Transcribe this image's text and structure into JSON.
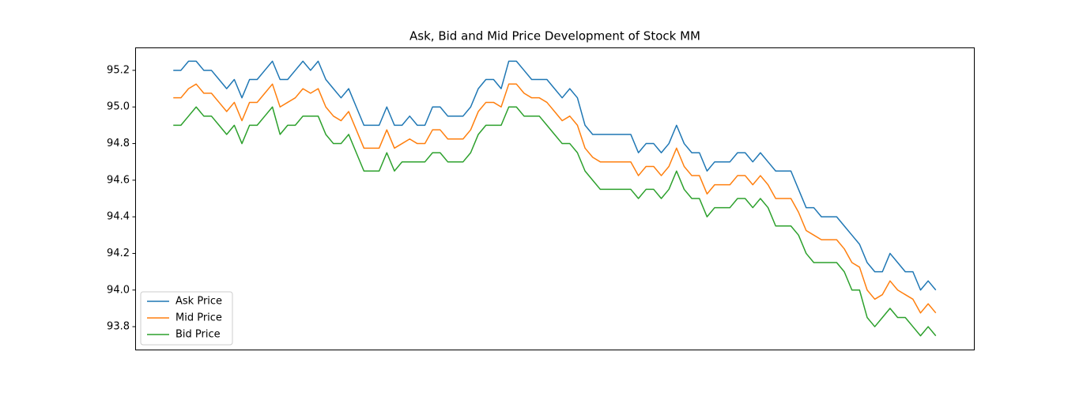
{
  "chart_data": {
    "type": "line",
    "title": "Ask, Bid and Mid Price Development of Stock MM",
    "categories": [
      null,
      null,
      null,
      null,
      null,
      null,
      null,
      null,
      null,
      null,
      null,
      null,
      null,
      null,
      null,
      null,
      null,
      null,
      null,
      null,
      null,
      null,
      null,
      null,
      null,
      null,
      null,
      null,
      null,
      null,
      null,
      null,
      null,
      null,
      null,
      null,
      null,
      null,
      null,
      null,
      null,
      null,
      null,
      null,
      null,
      null,
      null,
      null,
      null,
      null,
      null,
      null,
      null,
      null,
      null,
      null,
      null,
      null,
      null,
      null,
      null,
      null,
      null,
      null,
      null,
      null,
      null,
      null,
      null,
      null,
      null,
      null,
      null,
      null,
      null,
      null,
      null,
      null,
      null,
      null,
      null,
      null,
      null,
      null,
      null,
      null,
      null,
      null,
      null,
      null,
      null,
      null,
      null,
      null,
      null,
      null,
      null,
      null,
      null,
      null,
      null
    ],
    "series": [
      {
        "name": "Ask Price",
        "color": "#1f77b4",
        "values": [
          95.2,
          95.2,
          95.25,
          95.25,
          95.2,
          95.2,
          95.15,
          95.1,
          95.15,
          95.05,
          95.15,
          95.15,
          95.2,
          95.25,
          95.15,
          95.15,
          95.2,
          95.25,
          95.2,
          95.25,
          95.15,
          95.1,
          95.05,
          95.1,
          95.0,
          94.9,
          94.9,
          94.9,
          95.0,
          94.9,
          94.9,
          94.95,
          94.9,
          94.9,
          95.0,
          95.0,
          94.95,
          94.95,
          94.95,
          95.0,
          95.1,
          95.15,
          95.15,
          95.1,
          95.25,
          95.25,
          95.2,
          95.15,
          95.15,
          95.15,
          95.1,
          95.05,
          95.1,
          95.05,
          94.9,
          94.85,
          94.85,
          94.85,
          94.85,
          94.85,
          94.85,
          94.75,
          94.8,
          94.8,
          94.75,
          94.8,
          94.9,
          94.8,
          94.75,
          94.75,
          94.65,
          94.7,
          94.7,
          94.7,
          94.75,
          94.75,
          94.7,
          94.75,
          94.7,
          94.65,
          94.65,
          94.65,
          94.55,
          94.45,
          94.45,
          94.4,
          94.4,
          94.4,
          94.35,
          94.3,
          94.25,
          94.15,
          94.1,
          94.1,
          94.2,
          94.15,
          94.1,
          94.1,
          94.0,
          94.05,
          94.0
        ]
      },
      {
        "name": "Mid Price",
        "color": "#ff7f0e",
        "values": [
          95.05,
          95.05,
          95.1,
          95.125,
          95.075,
          95.075,
          95.025,
          94.975,
          95.025,
          94.925,
          95.025,
          95.025,
          95.075,
          95.125,
          95.0,
          95.025,
          95.05,
          95.1,
          95.075,
          95.1,
          95.0,
          94.95,
          94.925,
          94.975,
          94.875,
          94.775,
          94.775,
          94.775,
          94.875,
          94.775,
          94.8,
          94.825,
          94.8,
          94.8,
          94.875,
          94.875,
          94.825,
          94.825,
          94.825,
          94.875,
          94.975,
          95.025,
          95.025,
          95.0,
          95.125,
          95.125,
          95.075,
          95.05,
          95.05,
          95.025,
          94.975,
          94.925,
          94.95,
          94.9,
          94.775,
          94.725,
          94.7,
          94.7,
          94.7,
          94.7,
          94.7,
          94.625,
          94.675,
          94.675,
          94.625,
          94.675,
          94.775,
          94.675,
          94.625,
          94.625,
          94.525,
          94.575,
          94.575,
          94.575,
          94.625,
          94.625,
          94.575,
          94.625,
          94.575,
          94.5,
          94.5,
          94.5,
          94.425,
          94.325,
          94.3,
          94.275,
          94.275,
          94.275,
          94.225,
          94.15,
          94.125,
          94.0,
          93.95,
          93.975,
          94.05,
          94.0,
          93.975,
          93.95,
          93.875,
          93.925,
          93.875
        ]
      },
      {
        "name": "Bid Price",
        "color": "#2ca02c",
        "values": [
          94.9,
          94.9,
          94.95,
          95.0,
          94.95,
          94.95,
          94.9,
          94.85,
          94.9,
          94.8,
          94.9,
          94.9,
          94.95,
          95.0,
          94.85,
          94.9,
          94.9,
          94.95,
          94.95,
          94.95,
          94.85,
          94.8,
          94.8,
          94.85,
          94.75,
          94.65,
          94.65,
          94.65,
          94.75,
          94.65,
          94.7,
          94.7,
          94.7,
          94.7,
          94.75,
          94.75,
          94.7,
          94.7,
          94.7,
          94.75,
          94.85,
          94.9,
          94.9,
          94.9,
          95.0,
          95.0,
          94.95,
          94.95,
          94.95,
          94.9,
          94.85,
          94.8,
          94.8,
          94.75,
          94.65,
          94.6,
          94.55,
          94.55,
          94.55,
          94.55,
          94.55,
          94.5,
          94.55,
          94.55,
          94.5,
          94.55,
          94.65,
          94.55,
          94.5,
          94.5,
          94.4,
          94.45,
          94.45,
          94.45,
          94.5,
          94.5,
          94.45,
          94.5,
          94.45,
          94.35,
          94.35,
          94.35,
          94.3,
          94.2,
          94.15,
          94.15,
          94.15,
          94.15,
          94.1,
          94.0,
          94.0,
          93.85,
          93.8,
          93.85,
          93.9,
          93.85,
          93.85,
          93.8,
          93.75,
          93.8,
          93.75
        ]
      }
    ],
    "ylim": [
      93.675,
      95.325
    ],
    "yticks": [
      93.8,
      {
        "value": 94.0,
        "label": "94.0"
      },
      94.2,
      94.4,
      94.6,
      94.8,
      {
        "value": 95.0,
        "label": "95.0"
      },
      95.2
    ],
    "legend": "lower left"
  }
}
